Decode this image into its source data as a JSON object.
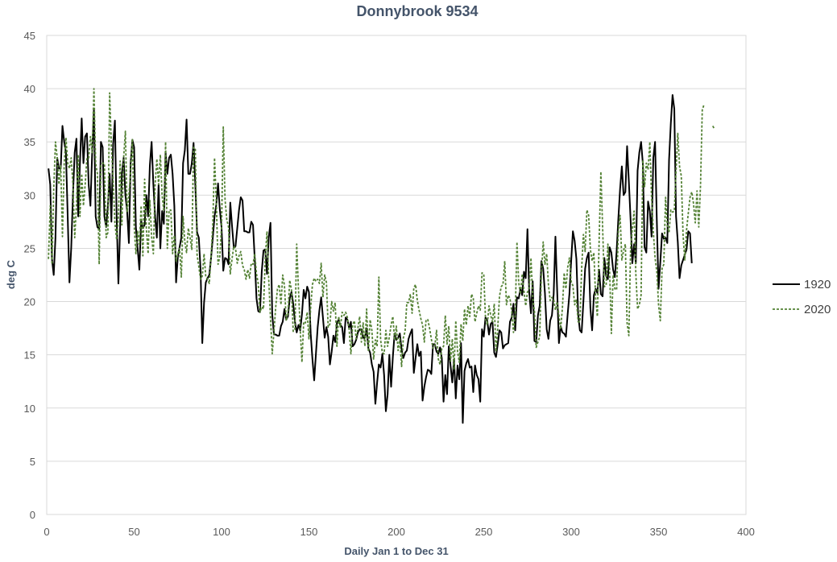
{
  "chart_data": {
    "type": "line",
    "title": "Donnybrook 9534",
    "xlabel": "Daily Jan 1 to Dec 31",
    "ylabel": "deg C",
    "xlim": [
      0,
      400
    ],
    "ylim": [
      0,
      45
    ],
    "x_ticks": [
      0,
      50,
      100,
      150,
      200,
      250,
      300,
      350,
      400
    ],
    "y_ticks": [
      0,
      5,
      10,
      15,
      20,
      25,
      30,
      35,
      40,
      45
    ],
    "grid": "horizontal",
    "legend": "right",
    "x_start": 1,
    "series": [
      {
        "name": "1920",
        "color": "#000000",
        "dash": "solid",
        "values": [
          32.5,
          31,
          24,
          22.5,
          26,
          33.5,
          32.5,
          32.5,
          36.5,
          35,
          34,
          28,
          21.8,
          25,
          30,
          34,
          35.3,
          28,
          33,
          37.2,
          33,
          35.5,
          35.8,
          31,
          29,
          34,
          38,
          28,
          27,
          26.8,
          35,
          34.5,
          28,
          27,
          29,
          32,
          27.5,
          34.8,
          37,
          28,
          21.7,
          27,
          32,
          33.5,
          30,
          28.5,
          25.5,
          33,
          35.2,
          34.5,
          27,
          25,
          23,
          27.6,
          26.9,
          27.2,
          30,
          28,
          32.8,
          35,
          31,
          28,
          26,
          31,
          25,
          28.5,
          27.3,
          34,
          32,
          33.5,
          33.8,
          32,
          29,
          21.8,
          24.2,
          25.1,
          26,
          33,
          34.2,
          37.1,
          32,
          32,
          33,
          34.9,
          31,
          26.5,
          26,
          23,
          16.1,
          19.9,
          21.8,
          22.2,
          22.5,
          24.1,
          26,
          28,
          29.1,
          31.1,
          28.7,
          27,
          22.9,
          24.1,
          24,
          23.5,
          29.3,
          27.1,
          25.1,
          25.2,
          26.9,
          28.6,
          29.8,
          29.5,
          26.6,
          26.6,
          26.5,
          26.5,
          27.5,
          27.2,
          24,
          20.3,
          19.1,
          19,
          22.8,
          24.8,
          24.9,
          22.6,
          26,
          27.4,
          18.8,
          16.9,
          16.9,
          16.8,
          16.8,
          17.7,
          18.1,
          19.3,
          18.3,
          18.6,
          20.3,
          20.9,
          19.8,
          18.1,
          17.1,
          17.8,
          17.3,
          18.8,
          21.1,
          20.3,
          21.4,
          20.9,
          17,
          14.6,
          12.6,
          15.1,
          17.6,
          19.2,
          20.4,
          18.5,
          16.6,
          17.6,
          16.7,
          14.1,
          15.3,
          16.8,
          16.2,
          18,
          18.3,
          17.8,
          17.6,
          16.1,
          18.5,
          18.3,
          17.5,
          18.1,
          15.8,
          16,
          16.4,
          17.1,
          17.4,
          17.4,
          16.6,
          16.6,
          17.5,
          15.6,
          15.2,
          14.1,
          13.4,
          10.4,
          12.4,
          14.1,
          13.8,
          15.1,
          13.1,
          9.7,
          11.3,
          15,
          12,
          14.8,
          17,
          16.4,
          16.6,
          17,
          15.5,
          14.7,
          15.2,
          15.4,
          16.5,
          17,
          17.4,
          13.3,
          14.7,
          16,
          14.9,
          15.3,
          10.7,
          12,
          12.9,
          13.6,
          13.5,
          13.2,
          16,
          16,
          15.3,
          15.1,
          15.7,
          14.7,
          10.6,
          13.1,
          11.3,
          15.8,
          14,
          12.4,
          14.6,
          10.9,
          14,
          12.7,
          16.1,
          8.6,
          13.5,
          14.2,
          14.6,
          13.8,
          13.9,
          11.5,
          14,
          13.1,
          12.7,
          10.6,
          17.4,
          16.7,
          18.5,
          18.2,
          16.9,
          17.9,
          18.1,
          15.2,
          14.8,
          16,
          17.3,
          17.1,
          15.6,
          15.9,
          16,
          16.1,
          18.1,
          18.5,
          19.8,
          17.3,
          20.4,
          20.3,
          21.2,
          20.6,
          22.8,
          22.2,
          26.8,
          20.9,
          18.9,
          21.9,
          16.3,
          16.2,
          18.7,
          19.6,
          23.8,
          23.1,
          20.8,
          17.4,
          16.5,
          18.2,
          18.7,
          20.7,
          26.1,
          21,
          16.1,
          17.7,
          17.1,
          17,
          16.7,
          18.8,
          20.7,
          23.8,
          26.6,
          25.7,
          24,
          18.8,
          17.3,
          17.1,
          20,
          23.1,
          24.1,
          24.6,
          19.4,
          17.3,
          20.6,
          21.2,
          20.8,
          23,
          20.7,
          20.5,
          24.1,
          22.4,
          22.1,
          25.1,
          24.6,
          23,
          22.3,
          24.7,
          27.8,
          30.6,
          32.7,
          30,
          30.3,
          34.6,
          31.3,
          27.7,
          23.6,
          25.4,
          23.6,
          32.3,
          34,
          35,
          33,
          25.1,
          24.6,
          29.4,
          28.5,
          26.1,
          33.5,
          35,
          27.6,
          21.2,
          23.7,
          26.4,
          25.9,
          26,
          25.5,
          33.3,
          36.7,
          39.4,
          38.1,
          28,
          25.6,
          22.2,
          23.4,
          23.9,
          24.4,
          24.9,
          26.6,
          26.4,
          23.6
        ]
      },
      {
        "name": "2020",
        "color": "#548235",
        "dash": "dashed",
        "values": [
          24,
          29,
          23.5,
          30.5,
          35,
          33.5,
          31,
          32.8,
          26.1,
          33,
          35.4,
          33,
          32.5,
          33.5,
          31,
          26,
          29,
          33.8,
          28,
          32,
          29,
          31,
          33.5,
          33.5,
          35.5,
          34,
          40,
          33,
          32,
          23.5,
          32.8,
          33,
          33,
          26,
          26.5,
          39.6,
          34.5,
          31.4,
          27.4,
          25.8,
          28,
          33.2,
          27.2,
          33.5,
          36,
          28.4,
          30,
          32.2,
          35.3,
          27.2,
          24.5,
          26.6,
          25.4,
          29,
          24.3,
          31.5,
          26.8,
          24.5,
          29.5,
          26.1,
          24.5,
          31,
          33.4,
          31,
          33.8,
          30,
          28.5,
          35,
          25,
          28.6,
          28.6,
          24.5,
          26.2,
          23.8,
          24.5,
          25,
          22.3,
          28,
          25.6,
          24.6,
          26.9,
          26,
          24.9,
          34.5,
          34.3,
          24.4,
          23.3,
          22.1,
          22.4,
          24.5,
          22.3,
          22.1,
          21.7,
          24.2,
          27.3,
          33.5,
          29.4,
          23.5,
          24.2,
          27,
          36.4,
          29.6,
          27.7,
          27,
          22.6,
          24,
          25.2,
          25,
          23.6,
          24.3,
          24.7,
          23.4,
          23,
          22.1,
          23,
          22.2,
          23.6,
          23.5,
          24.5,
          22.6,
          21.7,
          19,
          19.5,
          19.3,
          24,
          26.6,
          22.1,
          18.5,
          15.1,
          17.2,
          19.5,
          21.2,
          21.6,
          19.7,
          22.5,
          21.5,
          18.2,
          18.9,
          22,
          21.1,
          17.2,
          17.4,
          25.4,
          21.2,
          17.4,
          14.3,
          18.1,
          18,
          19,
          16.5,
          19.5,
          21.6,
          22.2,
          21.9,
          22.1,
          21.7,
          23.6,
          20.4,
          22.5,
          21.8,
          17.6,
          17.9,
          20,
          19.1,
          19.9,
          15.8,
          18.6,
          17.6,
          19,
          18.7,
          19,
          18.5,
          17.4,
          15.1,
          17.8,
          18.2,
          16.5,
          17.5,
          18.6,
          16.2,
          18,
          15.8,
          19.3,
          15.3,
          18.3,
          17.3,
          14.6,
          16.4,
          15.8,
          22.3,
          16.4,
          15.2,
          15.1,
          17.3,
          15.8,
          16.7,
          17.8,
          18.6,
          16.4,
          17.7,
          15.4,
          16.5,
          13.9,
          16.6,
          17.2,
          19.9,
          19.9,
          20.7,
          18.9,
          21.3,
          21.6,
          20.1,
          19.2,
          18.4,
          17.8,
          16.2,
          18.3,
          18.3,
          17.5,
          16.5,
          15.6,
          15.8,
          17.3,
          14.6,
          14.1,
          15.6,
          15.8,
          18.7,
          16,
          17.7,
          14.4,
          16.5,
          13.6,
          18.2,
          15.3,
          14.3,
          17.9,
          16.3,
          19.3,
          17.8,
          19.6,
          18.6,
          20.7,
          20.3,
          18.1,
          18.9,
          19.6,
          19.2,
          22.7,
          22.6,
          18.4,
          17.8,
          19.6,
          18.7,
          18.1,
          19.8,
          15.3,
          17.5,
          20.5,
          21.4,
          21.6,
          23.8,
          19.7,
          20.6,
          20.3,
          19.1,
          17.1,
          18.7,
          25.6,
          21.8,
          20.7,
          22.6,
          21,
          19.6,
          20.9,
          21.3,
          24.1,
          20.4,
          19.1,
          15.7,
          16.2,
          16.7,
          22.7,
          25.6,
          23.5,
          24.5,
          21.6,
          20.1,
          20.4,
          20.2,
          19.2,
          20,
          18.7,
          17.4,
          19.4,
          22.7,
          21.2,
          23.2,
          24.1,
          21.9,
          21.5,
          19.7,
          20.2,
          18.1,
          18.1,
          23.1,
          26.3,
          24.7,
          28.6,
          28.1,
          24.9,
          23.8,
          24.6,
          20.3,
          18.6,
          25.7,
          32.2,
          27,
          21.4,
          21.5,
          25.4,
          23,
          17,
          22.5,
          21.2,
          21.1,
          26.6,
          28.1,
          23.9,
          24.8,
          25.4,
          18,
          16.8,
          25,
          26.8,
          28.5,
          22.6,
          19.3,
          19.7,
          20.6,
          33.3,
          30.8,
          33,
          32.4,
          35,
          29.8,
          26.6,
          24.1,
          22.8,
          19.7,
          18.2,
          23.1,
          23.5,
          29.8,
          27.1,
          26.5,
          28.6,
          28.4,
          28.5,
          32.3,
          35.8,
          32.7,
          31.8,
          26.3,
          23.9,
          26.7,
          28.3,
          29.8,
          30.3,
          29.2,
          27.4,
          30.4,
          27,
          30.9,
          38,
          38.5,
          null,
          null,
          null,
          null,
          36.5,
          36.2
        ]
      }
    ]
  }
}
